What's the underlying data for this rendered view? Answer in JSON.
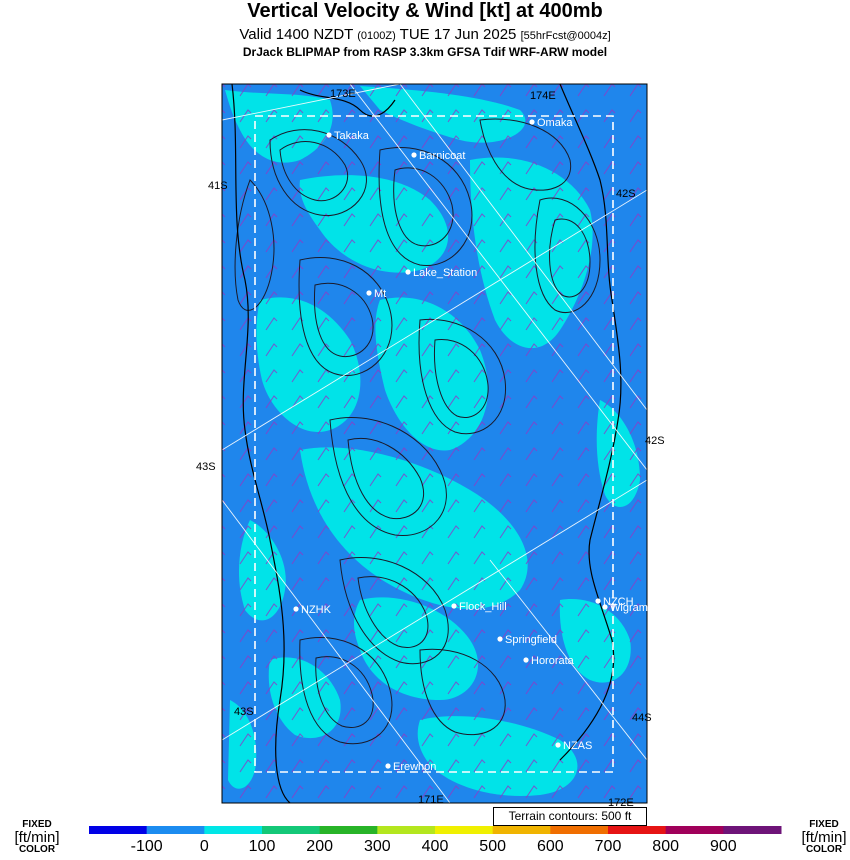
{
  "header": {
    "title": "Vertical Velocity & Wind [kt] at 400mb",
    "valid_prefix": "Valid 1400 NZDT",
    "valid_utc": "(0100Z)",
    "valid_date": "TUE 17 Jun 2025",
    "forecast": "[55hrFcst@0004z]",
    "model": "DrJack BLIPMAP from RASP 3.3km GFSA Tdif WRF-ARW model"
  },
  "map": {
    "grid_labels": [
      "173E",
      "174E",
      "41S",
      "42S",
      "43S",
      "42S",
      "43S",
      "44S",
      "172E",
      "171E"
    ],
    "places": [
      "Takaka",
      "Omaka",
      "Barnicoat",
      "Lake_Station",
      "Mt",
      "NZHK",
      "Flock_Hill",
      "NZCH",
      "Wigram",
      "Springfield",
      "Hororata",
      "NZAS",
      "Erewhon"
    ],
    "terrain_note": "Terrain contours: 500 ft"
  },
  "colorbar": {
    "unit_fixed": "FIXED",
    "unit": "[ft/min]",
    "unit_color": "COLOR",
    "labels": [
      "-100",
      "0",
      "100",
      "200",
      "300",
      "400",
      "500",
      "600",
      "700",
      "800",
      "900"
    ],
    "colors": [
      "#0000e6",
      "#1c8cf0",
      "#00e6e6",
      "#14c878",
      "#28b428",
      "#b4e61e",
      "#f0f000",
      "#f0b400",
      "#f06e00",
      "#e61414",
      "#a0005a",
      "#6e1478"
    ]
  },
  "colors": {
    "base_blue": "#1f86ec",
    "cyan": "#00e8e8",
    "wind_barb": "#8a3cc8",
    "contour": "#1a1a2a"
  }
}
